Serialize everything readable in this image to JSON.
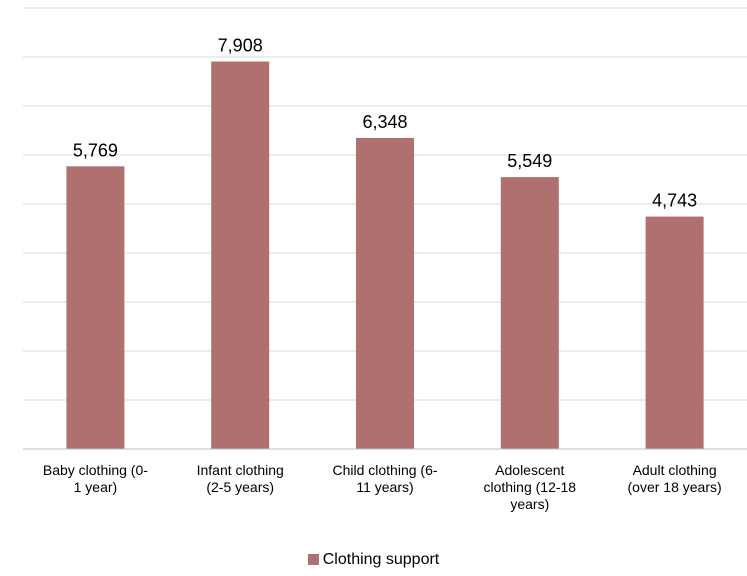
{
  "chart_data": {
    "type": "bar",
    "categories": [
      "Baby clothing (0- 1 year)",
      "Infant clothing (2-5 years)",
      "Child clothing (6- 11 years)",
      "Adolescent clothing (12-18 years)",
      "Adult clothing (over 18 years)"
    ],
    "category_lines": [
      [
        "Baby clothing (0-",
        "1 year)"
      ],
      [
        "Infant clothing",
        "(2-5 years)"
      ],
      [
        "Child clothing (6-",
        "11 years)"
      ],
      [
        "Adolescent",
        "clothing (12-18",
        "years)"
      ],
      [
        "Adult clothing",
        "(over 18 years)"
      ]
    ],
    "series": [
      {
        "name": "Clothing support",
        "values": [
          5769,
          7908,
          6348,
          5549,
          4743
        ],
        "labels": [
          "5,769",
          "7,908",
          "6,348",
          "5,549",
          "4,743"
        ],
        "color": "#b07070"
      }
    ],
    "ylim": [
      0,
      9000
    ],
    "gridline_step": 1000,
    "grid": true,
    "y_tick_labels_shown": false,
    "legend_position": "bottom"
  }
}
